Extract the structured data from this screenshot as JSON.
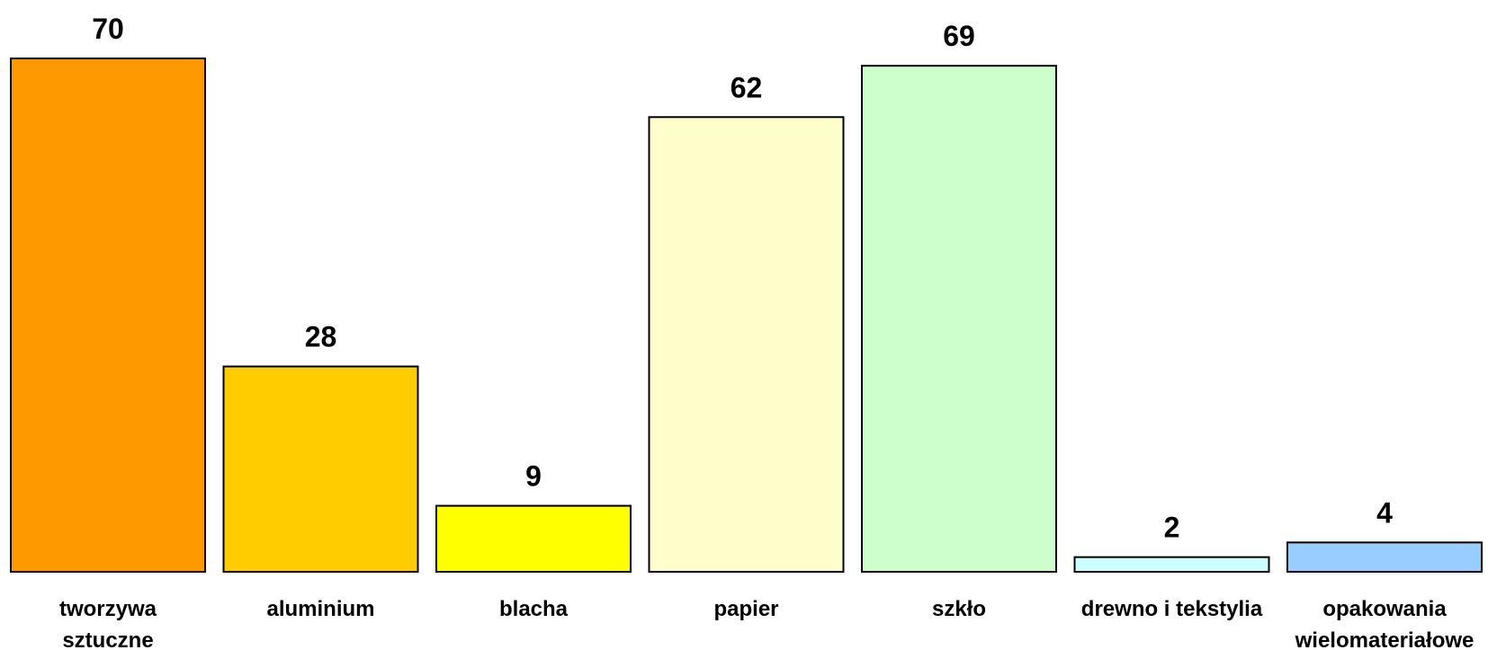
{
  "chart_data": {
    "type": "bar",
    "categories": [
      [
        "tworzywa",
        "sztuczne"
      ],
      [
        "aluminium"
      ],
      [
        "blacha"
      ],
      [
        "papier"
      ],
      [
        "szkło"
      ],
      [
        "drewno i tekstylia"
      ],
      [
        "opakowania",
        "wielomateriałowe"
      ]
    ],
    "values": [
      70,
      28,
      9,
      62,
      69,
      2,
      4
    ],
    "colors": [
      "#FF9900",
      "#FFCC00",
      "#FFFF00",
      "#FFFFCC",
      "#CCFFCC",
      "#CCFFFF",
      "#99CCFF"
    ],
    "title": "",
    "xlabel": "",
    "ylabel": "",
    "ylim": [
      0,
      70
    ],
    "grid": false,
    "legend": "none",
    "data_labels": true
  }
}
